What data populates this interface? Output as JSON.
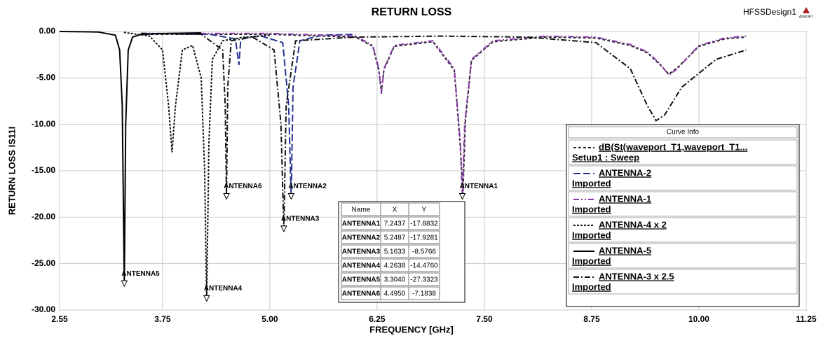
{
  "header": {
    "title": "RETURN LOSS",
    "design": "HFSSDesign1",
    "logo": "ANSOFT"
  },
  "chart_data": {
    "type": "line",
    "xlabel": "FREQUENCY [GHz]",
    "ylabel": "RETURN LOSS IS11I",
    "xlim": [
      2.55,
      11.25
    ],
    "xticks": [
      2.55,
      3.75,
      {
        "value": 5,
        "label": "5.00"
      },
      6.25,
      {
        "value": 7.5,
        "label": "7.50"
      },
      8.75,
      {
        "value": 10,
        "label": "10.00"
      },
      11.25
    ],
    "ylim": [
      -30,
      0
    ],
    "yticks": [
      {
        "value": 0,
        "label": "0.00"
      },
      {
        "value": -5,
        "label": "-5.00"
      },
      {
        "value": -10,
        "label": "-10.00"
      },
      {
        "value": -15,
        "label": "-15.00"
      },
      {
        "value": -20,
        "label": "-20.00"
      },
      {
        "value": -25,
        "label": "-25.00"
      },
      {
        "value": -30,
        "label": "-30.00"
      }
    ],
    "grid": true,
    "legend_title": "Curve Info",
    "series": [
      {
        "name": "dB(St(waveport_T1,waveport_T1...",
        "subtitle": "Setup1 : Sweep",
        "color": "#222222",
        "dash": "short-dash",
        "x": [
          3.5,
          5.0,
          6.0,
          6.2,
          6.27,
          6.3,
          6.33,
          6.45,
          6.9,
          7.15,
          7.22,
          7.25,
          7.28,
          7.35,
          7.6,
          8.2,
          8.8,
          9.2,
          9.4,
          9.55,
          9.65,
          9.75,
          10.0,
          10.3,
          10.55
        ],
        "values": [
          -0.3,
          -0.3,
          -0.6,
          -1.6,
          -4.2,
          -6.5,
          -4.1,
          -1.6,
          -1.1,
          -4.2,
          -12.5,
          -17.5,
          -9.5,
          -3.1,
          -1.1,
          -0.6,
          -0.7,
          -1.5,
          -2.3,
          -3.6,
          -4.6,
          -3.9,
          -1.6,
          -0.8,
          -0.6
        ]
      },
      {
        "name": "ANTENNA-2",
        "subtitle": "Imported",
        "color": "#26338f",
        "dash": "long-dash",
        "x": [
          3.5,
          4.3,
          4.6,
          4.64,
          4.66,
          4.7,
          4.9,
          5.15,
          5.22,
          5.2487,
          5.27,
          5.35,
          5.6,
          6.0
        ],
        "values": [
          -0.2,
          -0.3,
          -0.8,
          -3.6,
          -1,
          -0.7,
          -0.5,
          -1.2,
          -8,
          -17.93,
          -6,
          -1,
          -0.4,
          -0.3
        ]
      },
      {
        "name": "ANTENNA-1",
        "subtitle": "Imported",
        "color": "#8a3aa8",
        "dash": "dash-dot-dot",
        "x": [
          3.5,
          5.0,
          6.0,
          6.2,
          6.27,
          6.3,
          6.33,
          6.45,
          6.9,
          7.15,
          7.22,
          7.2437,
          7.27,
          7.35,
          7.6,
          8.2,
          8.8,
          9.2,
          9.4,
          9.55,
          9.65,
          9.75,
          10.0,
          10.3,
          10.55
        ],
        "values": [
          -0.2,
          -0.2,
          -0.5,
          -1.5,
          -4,
          -6.7,
          -4,
          -1.5,
          -1,
          -4,
          -12,
          -17.88,
          -10,
          -3,
          -1,
          -0.5,
          -0.6,
          -1.4,
          -2.2,
          -3.5,
          -4.7,
          -4,
          -1.5,
          -0.7,
          -0.5
        ]
      },
      {
        "name": "ANTENNA-4 x 2",
        "subtitle": "Imported",
        "color": "#111111",
        "dash": "dotted",
        "x": [
          3.3,
          3.6,
          3.75,
          3.82,
          3.86,
          3.9,
          3.98,
          4.1,
          4.2,
          4.24,
          4.2638,
          4.29,
          4.33,
          4.45,
          4.7,
          5.0
        ],
        "values": [
          -0.1,
          -0.5,
          -2,
          -8,
          -13,
          -8,
          -2,
          -1.5,
          -5,
          -15,
          -29,
          -12,
          -3,
          -1,
          -0.6,
          -0.4
        ]
      },
      {
        "name": "ANTENNA-5",
        "subtitle": "Imported",
        "color": "#000000",
        "dash": "solid",
        "x": [
          2.55,
          3.0,
          3.2,
          3.25,
          3.28,
          3.304,
          3.32,
          3.35,
          3.4,
          3.5,
          3.8,
          4.2
        ],
        "values": [
          0,
          -0.05,
          -0.4,
          -2,
          -8,
          -27.3,
          -10,
          -2,
          -0.6,
          -0.3,
          -0.2,
          -0.15
        ]
      },
      {
        "name": "ANTENNA-3 x 2.5",
        "subtitle": "Imported",
        "color": "#111111",
        "dash": "dash-dot",
        "x": [
          3.5,
          4.2,
          4.45,
          4.48,
          4.495,
          4.51,
          4.55,
          4.8,
          5.05,
          5.13,
          5.1633,
          5.19,
          5.3,
          6.0,
          7.0,
          8.0,
          8.8,
          9.2,
          9.4,
          9.5,
          9.6,
          9.8,
          10.2,
          10.55
        ],
        "values": [
          -0.2,
          -0.3,
          -2,
          -8,
          -17.96,
          -6,
          -1,
          -0.6,
          -2,
          -10,
          -21.4,
          -8,
          -1,
          -0.6,
          -0.5,
          -0.6,
          -1.2,
          -4,
          -8,
          -9.6,
          -9,
          -6,
          -3,
          -2
        ]
      }
    ],
    "markers": [
      {
        "label": "ANTENNA1",
        "x": 7.2437,
        "y": -17.9
      },
      {
        "label": "ANTENNA2",
        "x": 5.2487,
        "y": -17.9
      },
      {
        "label": "ANTENNA3",
        "x": 5.1633,
        "y": -21.4
      },
      {
        "label": "ANTENNA4",
        "x": 4.2638,
        "y": -28.9
      },
      {
        "label": "ANTENNA5",
        "x": 3.304,
        "y": -27.3
      },
      {
        "label": "ANTENNA6",
        "x": 4.495,
        "y": -17.9
      }
    ]
  },
  "marker_table": {
    "columns": [
      "Name",
      "X",
      "Y"
    ],
    "rows": [
      [
        "ANTENNA1",
        "7.2437",
        "-17.8832"
      ],
      [
        "ANTENNA2",
        "5.2487",
        "-17.9281"
      ],
      [
        "ANTENNA3",
        "5.1633",
        "-8.5766"
      ],
      [
        "ANTENNA4",
        "4.2638",
        "-14.4760"
      ],
      [
        "ANTENNA5",
        "3.3040",
        "-27.3323"
      ],
      [
        "ANTENNA6",
        "4.4950",
        "-7.1838"
      ]
    ]
  }
}
